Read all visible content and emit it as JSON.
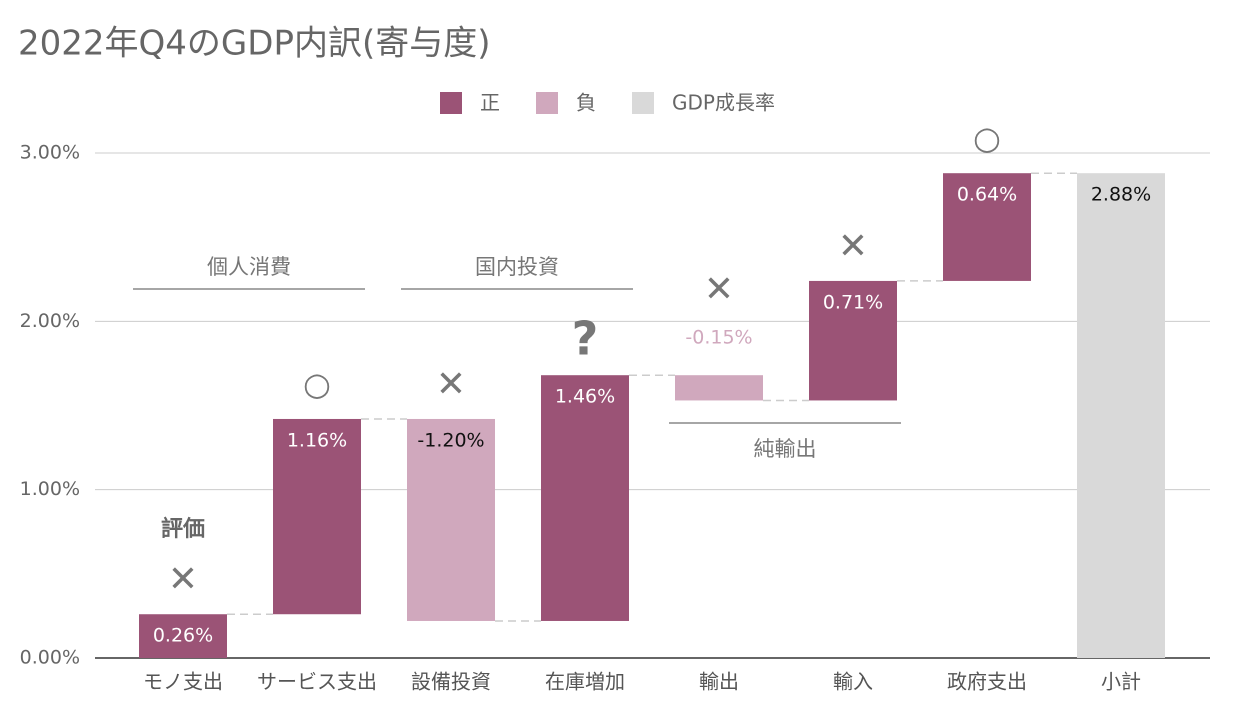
{
  "chart_data": {
    "type": "waterfall",
    "title": "2022年Q4のGDP内訳(寄与度)",
    "categories": [
      "モノ支出",
      "サービス支出",
      "設備投資",
      "在庫増加",
      "輸出",
      "輸入",
      "政府支出",
      "小計"
    ],
    "series": [
      {
        "name": "正",
        "color": "#9b5376",
        "values": [
          0.26,
          1.16,
          null,
          1.46,
          null,
          0.71,
          0.64,
          null
        ],
        "value_labels": [
          "0.26%",
          "1.16%",
          null,
          "1.46%",
          null,
          "0.71%",
          "0.64%",
          null
        ]
      },
      {
        "name": "負",
        "color": "#d0a8bd",
        "values": [
          null,
          null,
          -1.2,
          null,
          -0.15,
          null,
          null,
          null
        ],
        "value_labels": [
          null,
          null,
          "-1.20%",
          null,
          "-0.15%",
          null,
          null,
          null
        ]
      },
      {
        "name": "GDP成長率",
        "color": "#d9d9d9",
        "total": true,
        "values": [
          null,
          null,
          null,
          null,
          null,
          null,
          null,
          2.88
        ],
        "value_labels": [
          null,
          null,
          null,
          null,
          null,
          null,
          null,
          "2.88%"
        ]
      }
    ],
    "ylim": [
      0,
      3
    ],
    "yticks": [
      {
        "value": 0,
        "label": "0.00%"
      },
      {
        "value": 1,
        "label": "1.00%"
      },
      {
        "value": 2,
        "label": "2.00%"
      },
      {
        "value": 3,
        "label": "3.00%"
      }
    ],
    "grid": true,
    "legend": "top",
    "groups": [
      {
        "label": "個人消費",
        "categories": [
          0,
          1
        ],
        "placement": "above"
      },
      {
        "label": "国内投資",
        "categories": [
          2,
          3
        ],
        "placement": "above"
      },
      {
        "label": "純輸出",
        "categories": [
          4,
          5
        ],
        "placement": "below"
      }
    ],
    "marks": [
      "✕",
      "○",
      "✕",
      "?",
      "✕",
      "✕",
      "○",
      null
    ],
    "mark_caption": "評価"
  }
}
